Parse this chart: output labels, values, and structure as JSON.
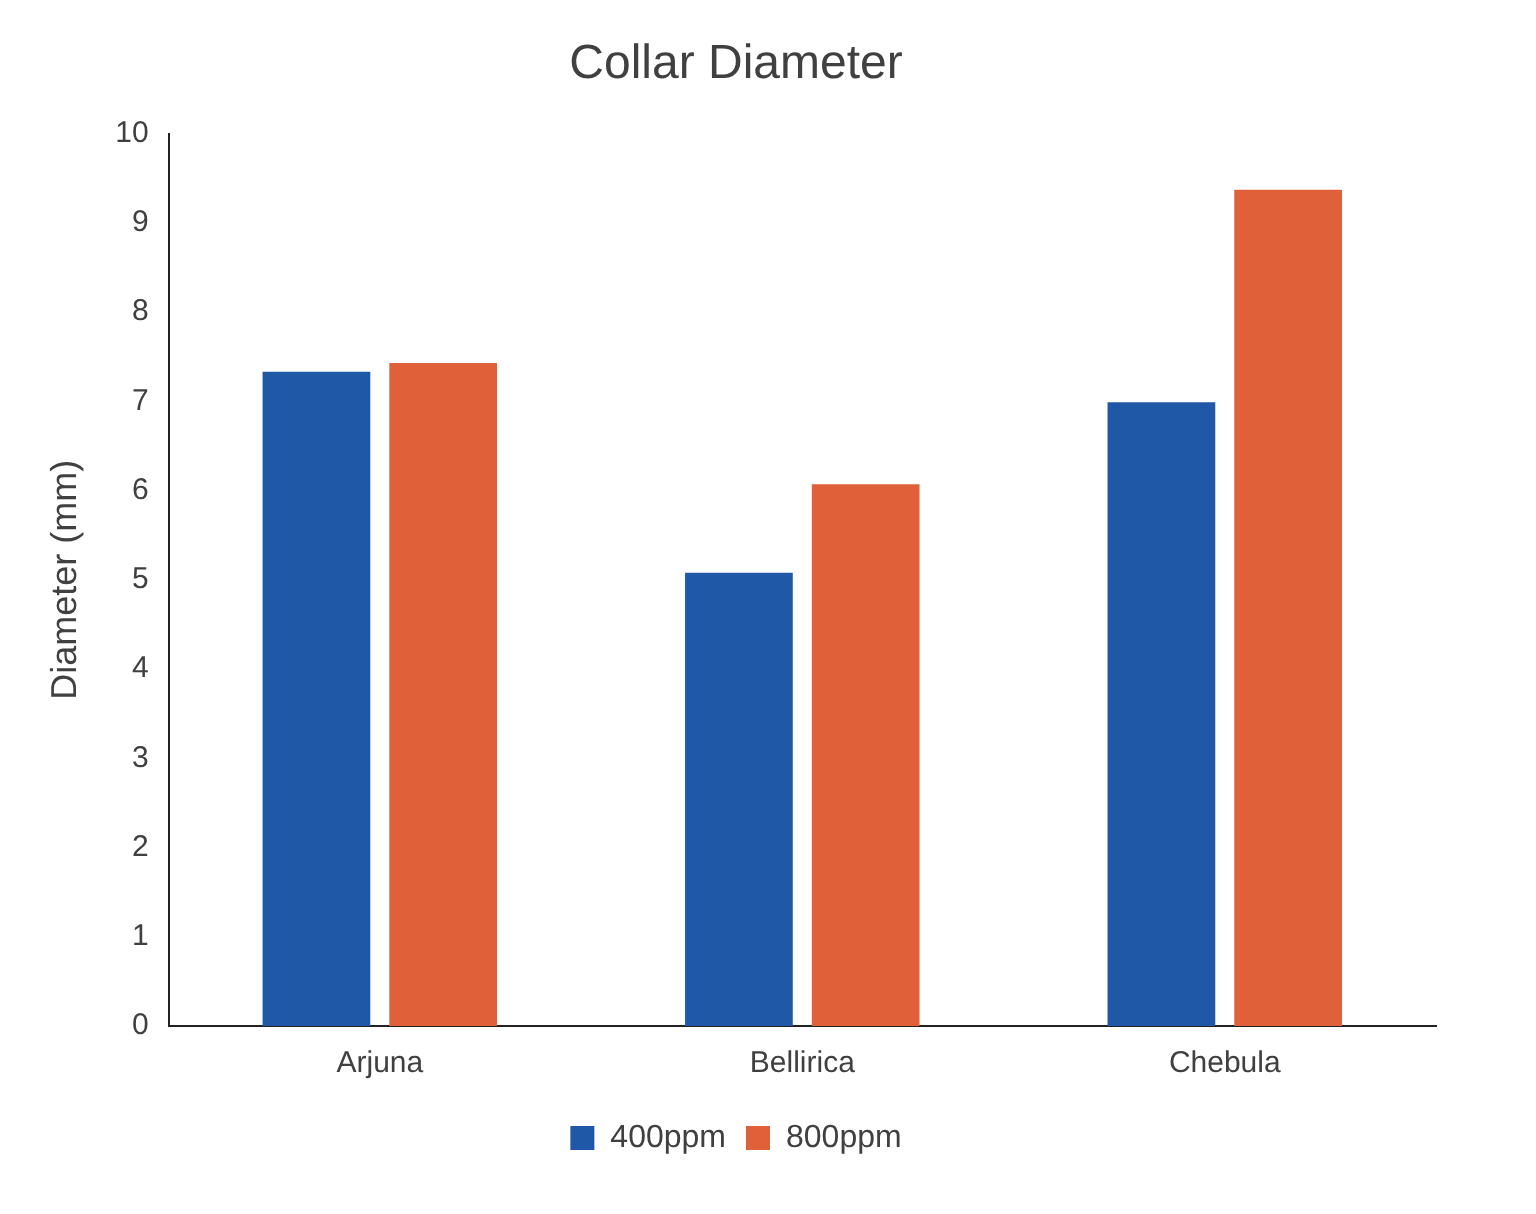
{
  "chart_data": {
    "type": "bar",
    "title": "Collar Diameter",
    "ylabel": "Diameter (mm)",
    "categories": [
      "Arjuna",
      "Bellirica",
      "Chebula"
    ],
    "series": [
      {
        "name": "400ppm",
        "color": "#2058a8",
        "values": [
          7.33,
          5.08,
          6.99
        ]
      },
      {
        "name": "800ppm",
        "color": "#e0603a",
        "values": [
          7.43,
          6.07,
          9.37
        ]
      }
    ],
    "ylim": [
      0,
      10
    ],
    "yticks": [
      0,
      1,
      2,
      3,
      4,
      5,
      6,
      7,
      8,
      9,
      10
    ],
    "grid": false,
    "legend": "bottom"
  }
}
